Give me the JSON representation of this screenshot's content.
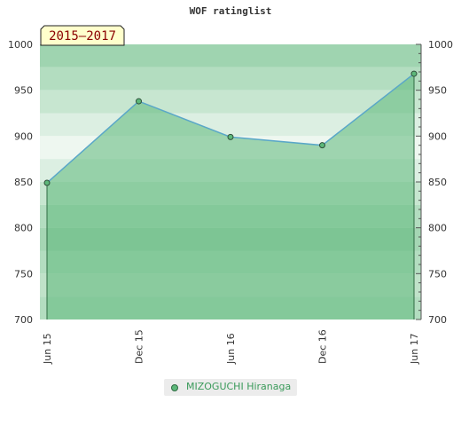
{
  "chart_data": {
    "type": "area",
    "title": "WOF ratinglist",
    "badge": "2015–2017",
    "categories": [
      "Jun 15",
      "Dec 15",
      "Jun 16",
      "Dec 16",
      "Jun 17"
    ],
    "series": [
      {
        "name": "MIZOGUCHI Hiranaga",
        "values": [
          849,
          938,
          899,
          890,
          968
        ]
      }
    ],
    "ylim": [
      700,
      1000
    ],
    "y_ticks": [
      700,
      750,
      800,
      850,
      900,
      950,
      1000
    ],
    "colors": {
      "line": "#5aa7c8",
      "fill": "#5db87a",
      "marker": "#5db87a",
      "badge_bg": "#ffffcc",
      "badge_text": "#8b0000"
    },
    "legend_position": "bottom"
  }
}
